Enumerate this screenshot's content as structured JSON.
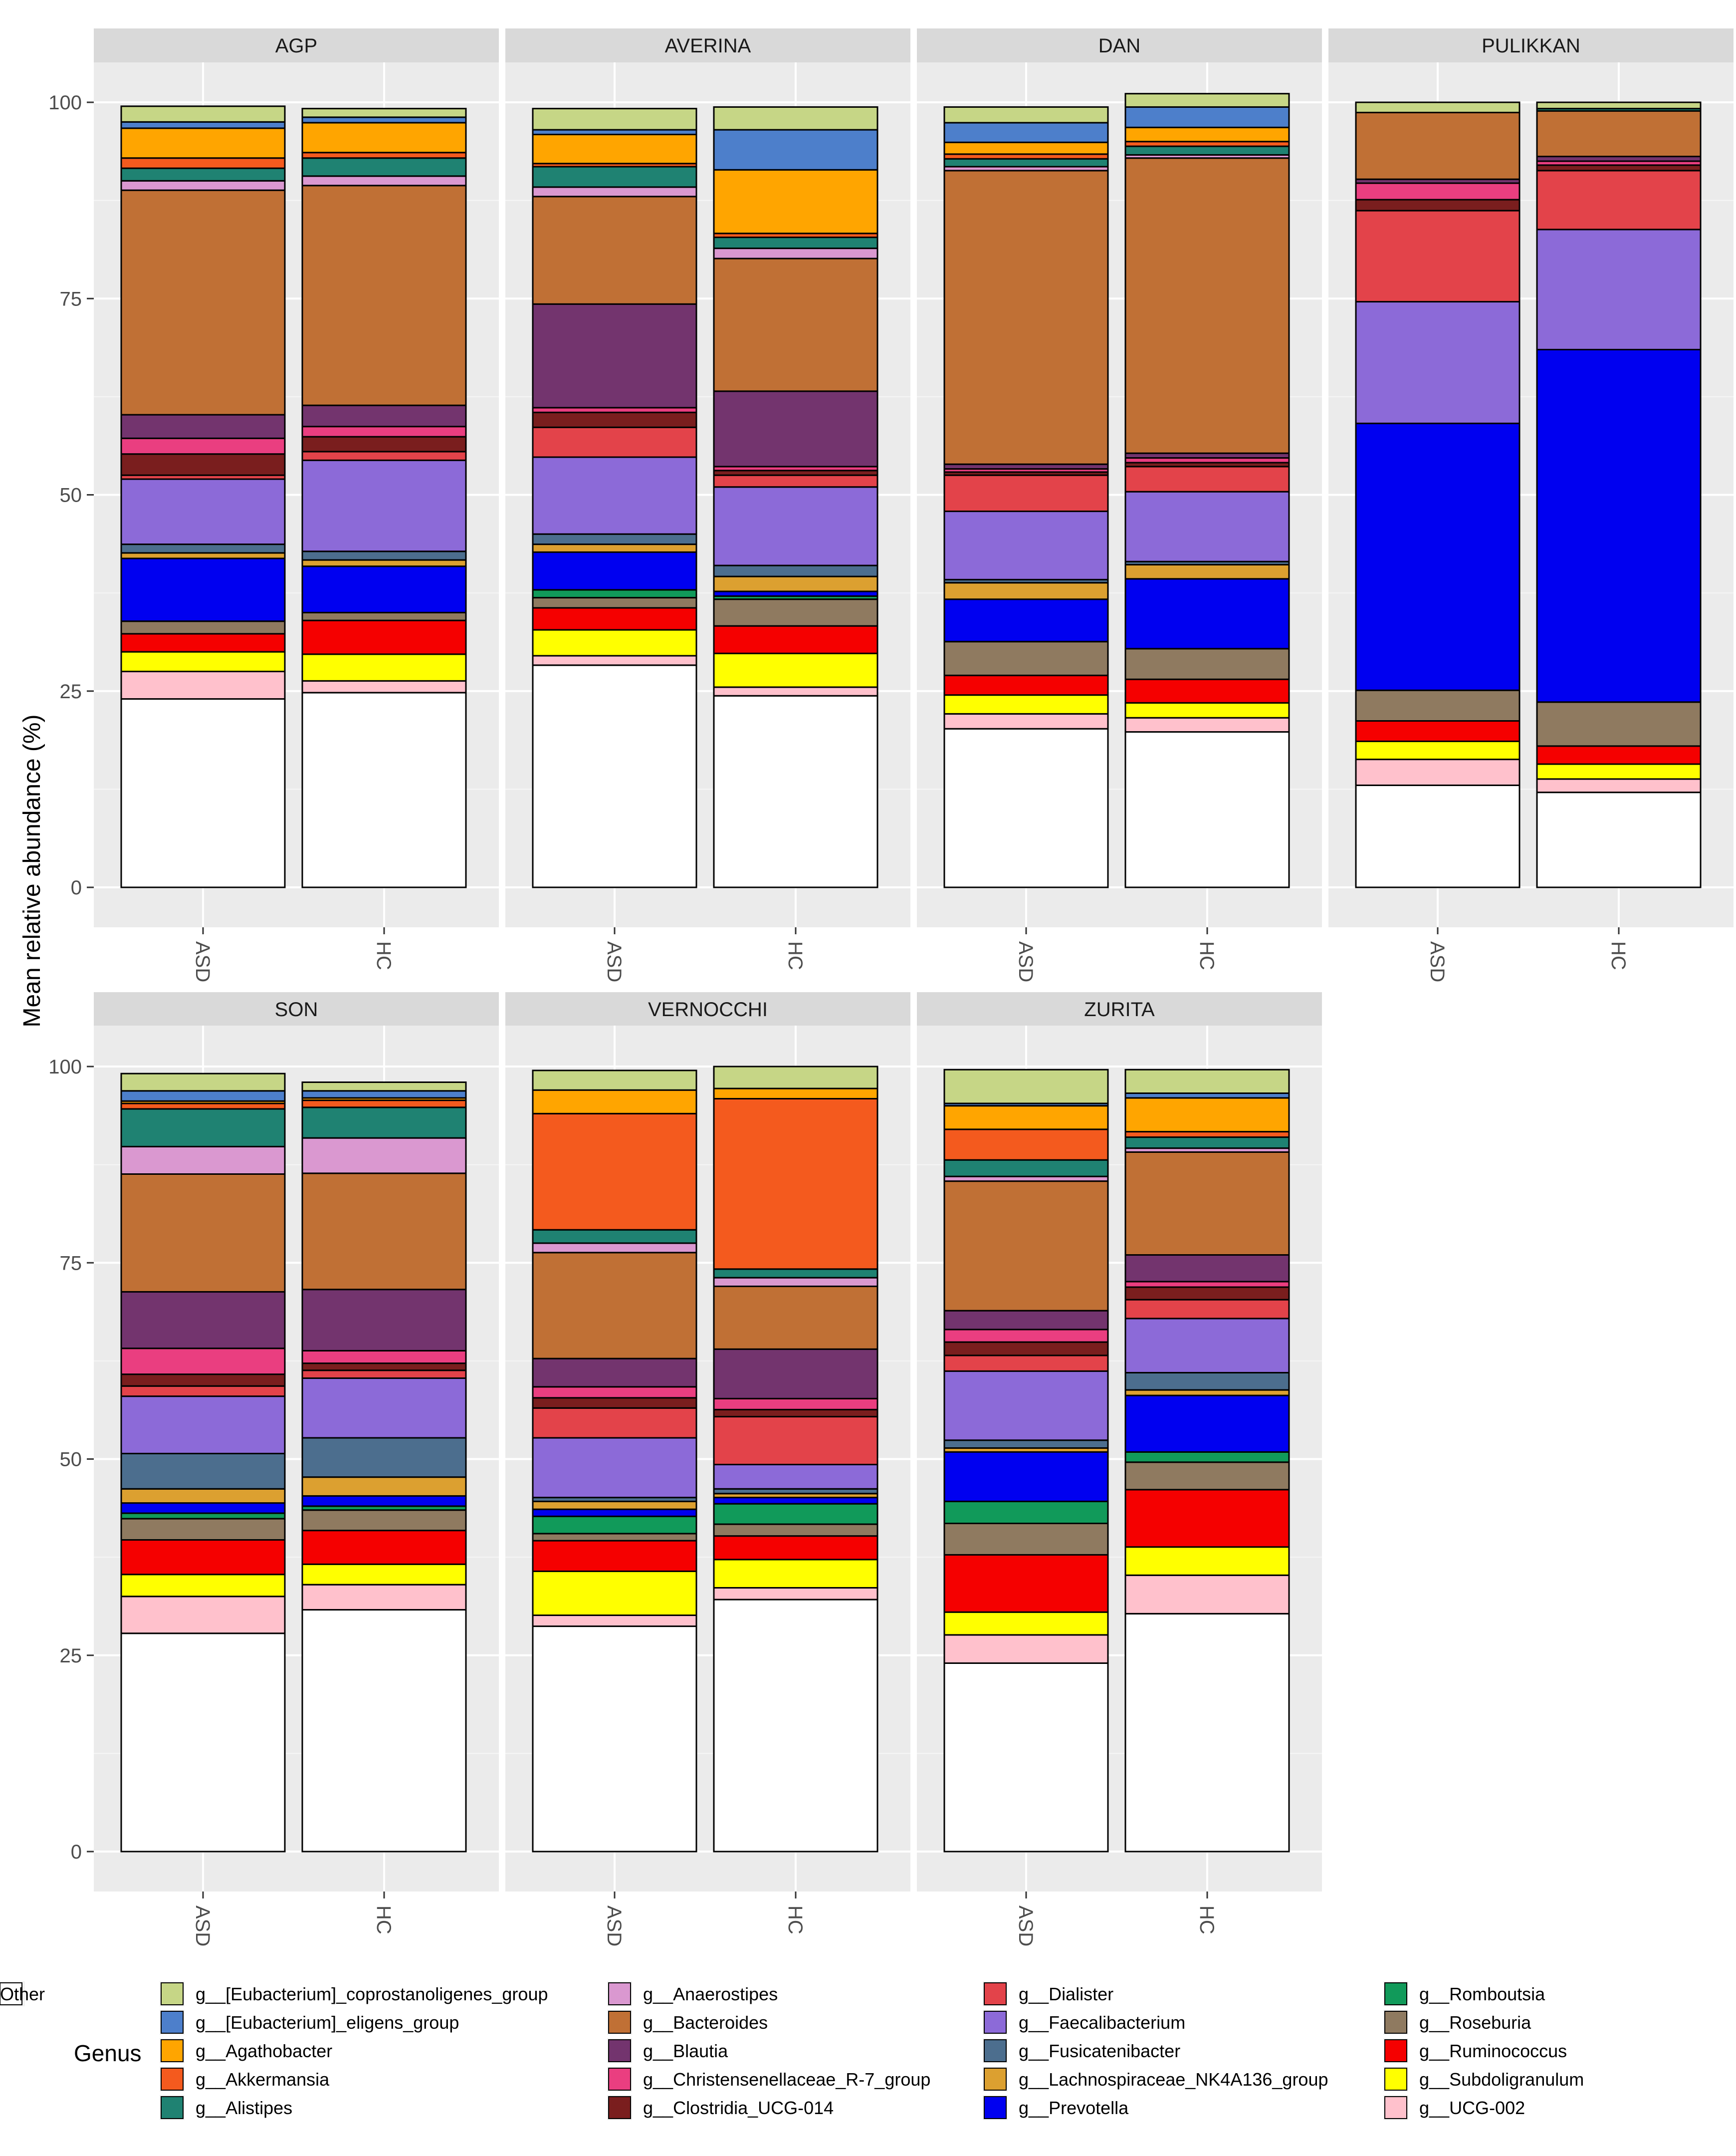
{
  "chart_data": {
    "type": "bar",
    "subtype": "stacked-100",
    "ylabel": "Mean relative abundance (%)",
    "ylim": [
      0,
      100
    ],
    "yticks": [
      0,
      25,
      50,
      75,
      100
    ],
    "categories": [
      "ASD",
      "HC"
    ],
    "legend": {
      "title": "Genus",
      "position": "bottom"
    },
    "genera": [
      {
        "key": "eub_cop",
        "label": "g__[Eubacterium]_coprostanoligenes_group",
        "color": "#C6D686"
      },
      {
        "key": "eub_eli",
        "label": "g__[Eubacterium]_eligens_group",
        "color": "#4D7FCB"
      },
      {
        "key": "agatho",
        "label": "g__Agathobacter",
        "color": "#FFA500"
      },
      {
        "key": "akker",
        "label": "g__Akkermansia",
        "color": "#F45A1E"
      },
      {
        "key": "alist",
        "label": "g__Alistipes",
        "color": "#1F8272"
      },
      {
        "key": "anaero",
        "label": "g__Anaerostipes",
        "color": "#DA98D0"
      },
      {
        "key": "bacter",
        "label": "g__Bacteroides",
        "color": "#C07035"
      },
      {
        "key": "blautia",
        "label": "g__Blautia",
        "color": "#73346E"
      },
      {
        "key": "christ",
        "label": "g__Christensenellaceae_R-7_group",
        "color": "#EA3E80"
      },
      {
        "key": "clostr",
        "label": "g__Clostridia_UCG-014",
        "color": "#7A1E1E"
      },
      {
        "key": "dialis",
        "label": "g__Dialister",
        "color": "#E3434A"
      },
      {
        "key": "faecal",
        "label": "g__Faecalibacterium",
        "color": "#8C6AD8"
      },
      {
        "key": "fusica",
        "label": "g__Fusicatenibacter",
        "color": "#4C6E8E"
      },
      {
        "key": "lachno",
        "label": "g__Lachnospiraceae_NK4A136_group",
        "color": "#DCA030"
      },
      {
        "key": "prevot",
        "label": "g__Prevotella",
        "color": "#0000F0"
      },
      {
        "key": "rombou",
        "label": "g__Romboutsia",
        "color": "#119A5A"
      },
      {
        "key": "rosebu",
        "label": "g__Roseburia",
        "color": "#8F7A60"
      },
      {
        "key": "rumino",
        "label": "g__Ruminococcus",
        "color": "#F50000"
      },
      {
        "key": "subdol",
        "label": "g__Subdoligranulum",
        "color": "#FFFF00"
      },
      {
        "key": "ucg002",
        "label": "g__UCG-002",
        "color": "#FFC1CC"
      },
      {
        "key": "other",
        "label": "Other",
        "color": "#FFFFFF"
      }
    ],
    "stack_order": [
      "other",
      "ucg002",
      "subdol",
      "rumino",
      "rosebu",
      "rombou",
      "prevot",
      "lachno",
      "fusica",
      "faecal",
      "dialis",
      "clostr",
      "christ",
      "blautia",
      "bacter",
      "anaero",
      "alist",
      "akker",
      "agatho",
      "eub_eli",
      "eub_cop"
    ],
    "panels": [
      {
        "name": "AGP",
        "bars": [
          {
            "group": "ASD",
            "values": {
              "other": 24,
              "ucg002": 3.5,
              "subdol": 2.5,
              "rumino": 2.3,
              "rosebu": 1.6,
              "rombou": 0,
              "prevot": 8,
              "lachno": 0.7,
              "fusica": 1.1,
              "faecal": 8.3,
              "dialis": 0.5,
              "clostr": 2.7,
              "christ": 2,
              "blautia": 3,
              "bacter": 28.6,
              "anaero": 1.2,
              "alist": 1.6,
              "akker": 1.3,
              "agatho": 3.8,
              "eub_eli": 0.8,
              "eub_cop": 2
            }
          },
          {
            "group": "HC",
            "values": {
              "other": 24.8,
              "ucg002": 1.5,
              "subdol": 3.4,
              "rumino": 4.3,
              "rosebu": 1,
              "rombou": 0,
              "prevot": 5.9,
              "lachno": 0.8,
              "fusica": 1.1,
              "faecal": 11.6,
              "dialis": 1.1,
              "clostr": 1.9,
              "christ": 1.3,
              "blautia": 2.7,
              "bacter": 28,
              "anaero": 1.2,
              "alist": 2.3,
              "akker": 0.7,
              "agatho": 3.8,
              "eub_eli": 0.7,
              "eub_cop": 1.1
            }
          }
        ]
      },
      {
        "name": "AVERINA",
        "bars": [
          {
            "group": "ASD",
            "values": {
              "other": 28.3,
              "ucg002": 1.2,
              "subdol": 3.3,
              "rumino": 2.8,
              "rosebu": 1.3,
              "rombou": 1,
              "prevot": 4.8,
              "lachno": 1,
              "fusica": 1.3,
              "faecal": 9.8,
              "dialis": 3.8,
              "clostr": 1.9,
              "christ": 0.6,
              "blautia": 13.2,
              "bacter": 13.7,
              "anaero": 1.2,
              "alist": 2.6,
              "akker": 0.4,
              "agatho": 3.7,
              "eub_eli": 0.6,
              "eub_cop": 2.7
            }
          },
          {
            "group": "HC",
            "values": {
              "other": 24.4,
              "ucg002": 1.1,
              "subdol": 4.3,
              "rumino": 3.5,
              "rosebu": 3.4,
              "rombou": 0.4,
              "prevot": 0.6,
              "lachno": 1.9,
              "fusica": 1.4,
              "faecal": 10,
              "dialis": 1.5,
              "clostr": 0.6,
              "christ": 0.5,
              "blautia": 9.6,
              "bacter": 16.9,
              "anaero": 1.3,
              "alist": 1.4,
              "akker": 0.5,
              "agatho": 8.1,
              "eub_eli": 5.1,
              "eub_cop": 2.9
            }
          }
        ]
      },
      {
        "name": "DAN",
        "bars": [
          {
            "group": "ASD",
            "values": {
              "other": 20.2,
              "ucg002": 1.9,
              "subdol": 2.4,
              "rumino": 2.5,
              "rosebu": 4.3,
              "rombou": 0,
              "prevot": 5.4,
              "lachno": 2.1,
              "fusica": 0.4,
              "faecal": 8.7,
              "dialis": 4.6,
              "clostr": 0.4,
              "christ": 0.4,
              "blautia": 0.6,
              "bacter": 37.4,
              "anaero": 0.5,
              "alist": 1,
              "akker": 0.6,
              "agatho": 1.5,
              "eub_eli": 2.5,
              "eub_cop": 2
            }
          },
          {
            "group": "HC",
            "values": {
              "other": 19.8,
              "ucg002": 1.8,
              "subdol": 1.9,
              "rumino": 3,
              "rosebu": 3.9,
              "rombou": 0,
              "prevot": 8.9,
              "lachno": 1.8,
              "fusica": 0.4,
              "faecal": 8.9,
              "dialis": 3.2,
              "clostr": 0.5,
              "christ": 0.6,
              "blautia": 0.6,
              "bacter": 37.6,
              "anaero": 0.4,
              "alist": 1.1,
              "akker": 0.6,
              "agatho": 1.8,
              "eub_eli": 2.6,
              "eub_cop": 1.7
            }
          }
        ]
      },
      {
        "name": "PULIKKAN",
        "bars": [
          {
            "group": "ASD",
            "values": {
              "other": 13,
              "ucg002": 3.3,
              "subdol": 2.3,
              "rumino": 2.6,
              "rosebu": 3.9,
              "rombou": 0,
              "prevot": 34,
              "lachno": 0,
              "fusica": 0,
              "faecal": 15.5,
              "dialis": 11.6,
              "clostr": 1.4,
              "christ": 2.1,
              "blautia": 0.5,
              "bacter": 8.5,
              "anaero": 0,
              "alist": 0,
              "akker": 0,
              "agatho": 0,
              "eub_eli": 0,
              "eub_cop": 1.3
            }
          },
          {
            "group": "HC",
            "values": {
              "other": 12.1,
              "ucg002": 1.7,
              "subdol": 1.9,
              "rumino": 2.3,
              "rosebu": 5.6,
              "rombou": 0,
              "prevot": 44.9,
              "lachno": 0,
              "fusica": 0,
              "faecal": 15.3,
              "dialis": 7.5,
              "clostr": 0.7,
              "christ": 0.5,
              "blautia": 0.6,
              "bacter": 5.8,
              "anaero": 0,
              "alist": 0.3,
              "akker": 0,
              "agatho": 0,
              "eub_eli": 0,
              "eub_cop": 0.8
            }
          }
        ]
      },
      {
        "name": "SON",
        "bars": [
          {
            "group": "ASD",
            "values": {
              "other": 27.8,
              "ucg002": 4.7,
              "subdol": 2.8,
              "rumino": 4.4,
              "rosebu": 2.7,
              "rombou": 0.7,
              "prevot": 1.3,
              "lachno": 1.8,
              "fusica": 4.5,
              "faecal": 7.3,
              "dialis": 1.3,
              "clostr": 1.5,
              "christ": 3.3,
              "blautia": 7.2,
              "bacter": 15,
              "anaero": 3.5,
              "alist": 4.8,
              "akker": 0.7,
              "agatho": 0.3,
              "eub_eli": 1.3,
              "eub_cop": 2.2
            }
          },
          {
            "group": "HC",
            "values": {
              "other": 30.8,
              "ucg002": 3.2,
              "subdol": 2.6,
              "rumino": 4.3,
              "rosebu": 2.6,
              "rombou": 0.5,
              "prevot": 1.3,
              "lachno": 2.4,
              "fusica": 5,
              "faecal": 7.6,
              "dialis": 1,
              "clostr": 0.9,
              "christ": 1.6,
              "blautia": 7.8,
              "bacter": 14.8,
              "anaero": 4.5,
              "alist": 3.9,
              "akker": 0.9,
              "agatho": 0.3,
              "eub_eli": 0.9,
              "eub_cop": 1.1
            }
          }
        ]
      },
      {
        "name": "VERNOCCHI",
        "bars": [
          {
            "group": "ASD",
            "values": {
              "other": 28.7,
              "ucg002": 1.4,
              "subdol": 5.6,
              "rumino": 3.9,
              "rosebu": 0.9,
              "rombou": 2.2,
              "prevot": 0.9,
              "lachno": 1,
              "fusica": 0.5,
              "faecal": 7.6,
              "dialis": 3.8,
              "clostr": 1.3,
              "christ": 1.4,
              "blautia": 3.6,
              "bacter": 13.5,
              "anaero": 1.2,
              "alist": 1.7,
              "akker": 14.8,
              "agatho": 3,
              "eub_eli": 0,
              "eub_cop": 2.5
            }
          },
          {
            "group": "HC",
            "values": {
              "other": 32.1,
              "ucg002": 1.5,
              "subdol": 3.6,
              "rumino": 3,
              "rosebu": 1.5,
              "rombou": 2.6,
              "prevot": 0.8,
              "lachno": 0.5,
              "fusica": 0.6,
              "faecal": 3.1,
              "dialis": 6.1,
              "clostr": 0.9,
              "christ": 1.4,
              "blautia": 6.3,
              "bacter": 8,
              "anaero": 1.1,
              "alist": 1.1,
              "akker": 21.7,
              "agatho": 1.3,
              "eub_eli": 0,
              "eub_cop": 2.8
            }
          }
        ]
      },
      {
        "name": "ZURITA",
        "bars": [
          {
            "group": "ASD",
            "values": {
              "other": 24,
              "ucg002": 3.6,
              "subdol": 2.9,
              "rumino": 7.3,
              "rosebu": 4,
              "rombou": 2.8,
              "prevot": 6.3,
              "lachno": 0.5,
              "fusica": 1,
              "faecal": 8.8,
              "dialis": 2,
              "clostr": 1.7,
              "christ": 1.6,
              "blautia": 2.4,
              "bacter": 16.5,
              "anaero": 0.6,
              "alist": 2.1,
              "akker": 3.9,
              "agatho": 3,
              "eub_eli": 0.3,
              "eub_cop": 4.3
            }
          },
          {
            "group": "HC",
            "values": {
              "other": 30.3,
              "ucg002": 4.9,
              "subdol": 3.6,
              "rumino": 7.3,
              "rosebu": 3.5,
              "rombou": 1.3,
              "prevot": 7.2,
              "lachno": 0.7,
              "fusica": 2.2,
              "faecal": 6.9,
              "dialis": 2.4,
              "clostr": 1.6,
              "christ": 0.7,
              "blautia": 3.4,
              "bacter": 13.1,
              "anaero": 0.5,
              "alist": 1.4,
              "akker": 0.7,
              "agatho": 4.3,
              "eub_eli": 0.6,
              "eub_cop": 3
            }
          }
        ]
      }
    ]
  }
}
